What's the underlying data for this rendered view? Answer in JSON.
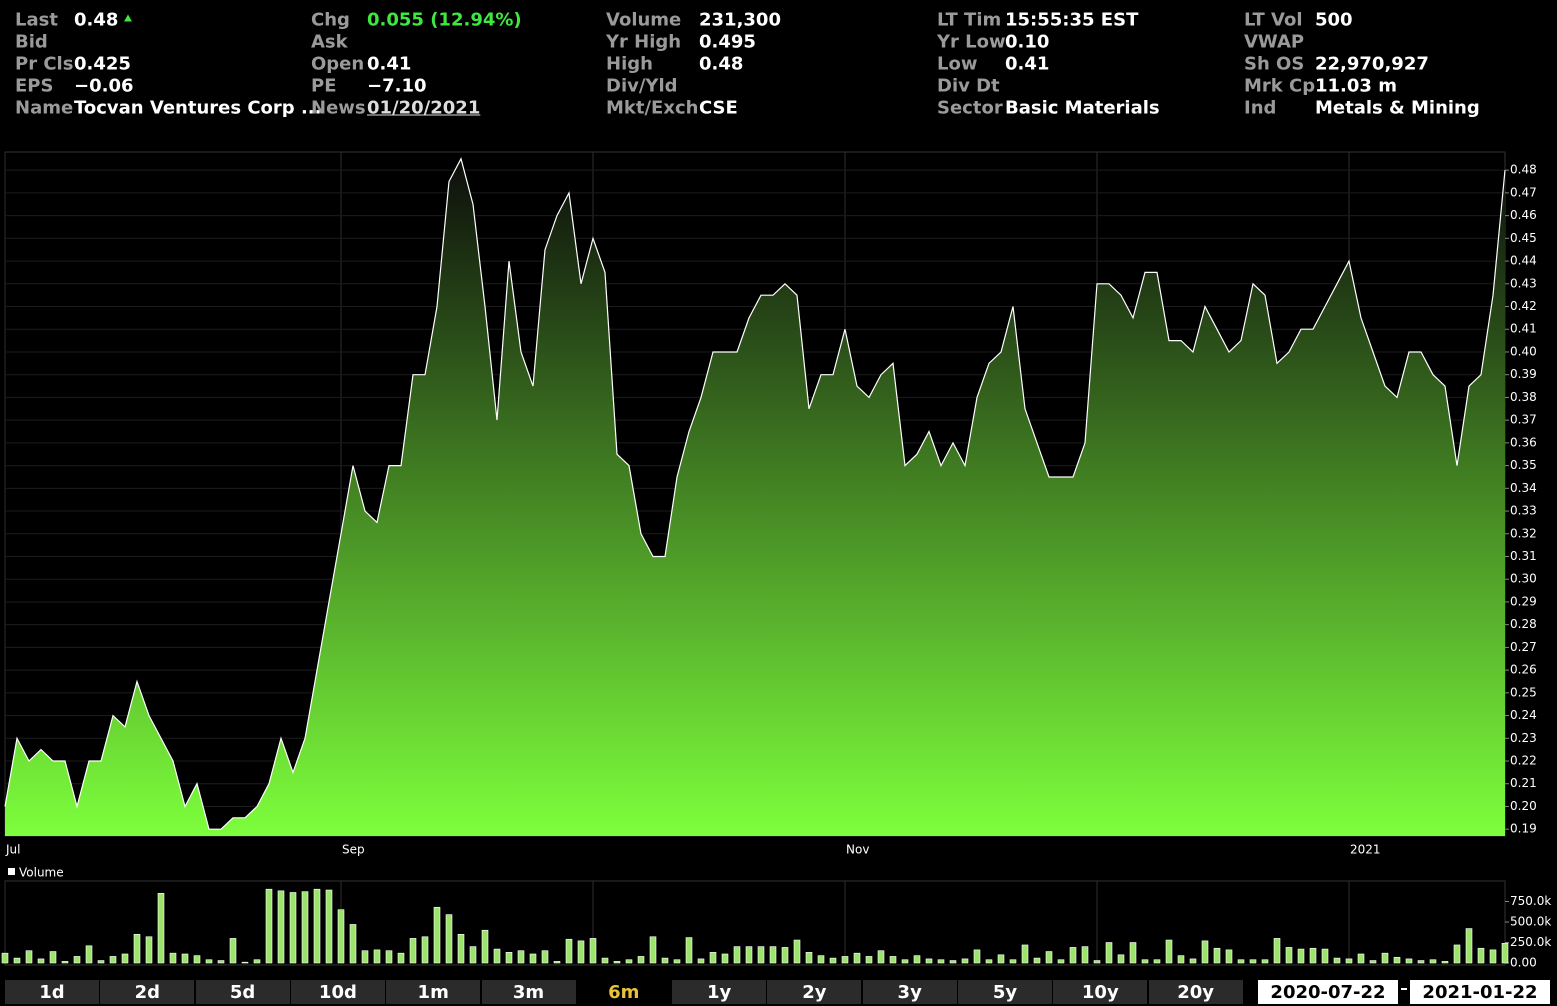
{
  "quote": {
    "columns": [
      [
        {
          "label": "Last",
          "value": "0.48"
        },
        {
          "label": "Bid"
        },
        {
          "label": "Pr Cls",
          "value": "0.425"
        },
        {
          "label": "EPS",
          "value": "−0.06"
        },
        {
          "label": "Name",
          "value": "Tocvan Ventures Corp ..."
        }
      ],
      [
        {
          "label": "Chg",
          "value": "0.055 (12.94%)"
        },
        {
          "label": "Ask"
        },
        {
          "label": "Open",
          "value": "0.41"
        },
        {
          "label": "PE",
          "value": "−7.10"
        },
        {
          "label": "News",
          "value": "01/20/2021"
        }
      ],
      [
        {
          "label": "Volume",
          "value": "231,300"
        },
        {
          "label": "Yr High",
          "value": "0.495"
        },
        {
          "label": "High",
          "value": "0.48"
        },
        {
          "label": "Div/Yld"
        },
        {
          "label": "Mkt/Exch",
          "value": "CSE"
        }
      ],
      [
        {
          "label": "LT Tim",
          "value": "15:55:35 EST"
        },
        {
          "label": "Yr Low",
          "value": "0.10"
        },
        {
          "label": "Low",
          "value": "0.41"
        },
        {
          "label": "Div Dt"
        },
        {
          "label": "Sector",
          "value": "Basic Materials"
        }
      ],
      [
        {
          "label": "LT Vol",
          "value": "500"
        },
        {
          "label": "VWAP"
        },
        {
          "label": "Sh OS",
          "value": "22,970,927"
        },
        {
          "label": "Mrk Cp",
          "value": "11.03 m"
        },
        {
          "label": "Ind",
          "value": "Metals & Mining"
        }
      ]
    ]
  },
  "chart_data": [
    {
      "type": "area",
      "color": "#ffffff",
      "fill_bottom": "#7dff3c",
      "fill_top": "#0b0b0b",
      "values": [
        0.2,
        0.23,
        0.22,
        0.225,
        0.22,
        0.22,
        0.2,
        0.22,
        0.22,
        0.24,
        0.235,
        0.255,
        0.24,
        0.23,
        0.22,
        0.2,
        0.21,
        0.19,
        0.19,
        0.195,
        0.195,
        0.2,
        0.21,
        0.23,
        0.215,
        0.23,
        0.26,
        0.29,
        0.32,
        0.35,
        0.33,
        0.325,
        0.35,
        0.35,
        0.39,
        0.39,
        0.42,
        0.475,
        0.485,
        0.465,
        0.42,
        0.37,
        0.44,
        0.4,
        0.385,
        0.445,
        0.46,
        0.47,
        0.43,
        0.45,
        0.435,
        0.355,
        0.35,
        0.32,
        0.31,
        0.31,
        0.345,
        0.365,
        0.38,
        0.4,
        0.4,
        0.4,
        0.415,
        0.425,
        0.425,
        0.43,
        0.425,
        0.375,
        0.39,
        0.39,
        0.41,
        0.385,
        0.38,
        0.39,
        0.395,
        0.35,
        0.355,
        0.365,
        0.35,
        0.36,
        0.35,
        0.38,
        0.395,
        0.4,
        0.42,
        0.375,
        0.36,
        0.345,
        0.345,
        0.345,
        0.36,
        0.43,
        0.43,
        0.425,
        0.415,
        0.435,
        0.435,
        0.405,
        0.405,
        0.4,
        0.42,
        0.41,
        0.4,
        0.405,
        0.43,
        0.425,
        0.395,
        0.4,
        0.41,
        0.41,
        0.42,
        0.43,
        0.44,
        0.415,
        0.4,
        0.385,
        0.38,
        0.4,
        0.4,
        0.39,
        0.385,
        0.35,
        0.385,
        0.39,
        0.425,
        0.48
      ],
      "xlim": [
        0,
        125
      ],
      "xticks": [
        {
          "value": 0,
          "label": "Jul"
        },
        {
          "value": 28,
          "label": "Sep"
        },
        {
          "value": 49,
          "label": null
        },
        {
          "value": 70,
          "label": "Nov"
        },
        {
          "value": 91,
          "label": null
        },
        {
          "value": 112,
          "label": "2021"
        }
      ],
      "ylim": [
        0.187,
        0.488
      ],
      "yticks": [
        0.19,
        {
          "value": 0.2,
          "label": "0.20"
        },
        0.21,
        0.22,
        0.23,
        0.24,
        0.25,
        0.26,
        0.27,
        0.28,
        0.29,
        {
          "value": 0.3,
          "label": "0.30"
        },
        0.31,
        0.32,
        0.33,
        0.34,
        0.35,
        0.36,
        0.37,
        0.38,
        0.39,
        {
          "value": 0.4,
          "label": "0.40"
        },
        0.41,
        0.42,
        0.43,
        0.44,
        0.45,
        0.46,
        0.47,
        0.48
      ],
      "grid": true
    },
    {
      "type": "bar",
      "series": [
        {
          "name": "Volume",
          "color": "#9be36b",
          "values": [
            120000,
            60000,
            150000,
            50000,
            140000,
            20000,
            80000,
            210000,
            30000,
            80000,
            110000,
            350000,
            320000,
            850000,
            120000,
            110000,
            90000,
            40000,
            30000,
            300000,
            10000,
            40000,
            900000,
            880000,
            860000,
            870000,
            900000,
            890000,
            650000,
            470000,
            150000,
            160000,
            150000,
            120000,
            300000,
            320000,
            680000,
            590000,
            350000,
            200000,
            400000,
            170000,
            130000,
            150000,
            110000,
            150000,
            20000,
            290000,
            270000,
            300000,
            60000,
            20000,
            40000,
            80000,
            320000,
            60000,
            40000,
            310000,
            50000,
            130000,
            110000,
            200000,
            200000,
            200000,
            200000,
            190000,
            280000,
            130000,
            90000,
            60000,
            80000,
            120000,
            80000,
            150000,
            80000,
            40000,
            90000,
            50000,
            40000,
            30000,
            50000,
            160000,
            40000,
            100000,
            40000,
            220000,
            60000,
            140000,
            40000,
            190000,
            200000,
            30000,
            250000,
            100000,
            250000,
            40000,
            40000,
            280000,
            90000,
            50000,
            270000,
            180000,
            160000,
            40000,
            40000,
            40000,
            300000,
            190000,
            170000,
            180000,
            170000,
            60000,
            50000,
            110000,
            30000,
            120000,
            70000,
            50000,
            30000,
            40000,
            20000,
            220000,
            420000,
            180000,
            160000,
            240000
          ]
        }
      ],
      "xlim": [
        0,
        125
      ],
      "ylim": [
        0,
        1000000
      ],
      "yticks": [
        {
          "value": 0,
          "label": "0.00"
        },
        {
          "value": 250000,
          "label": "250.0k"
        },
        {
          "value": 500000,
          "label": "500.0k"
        },
        {
          "value": 750000,
          "label": "750.0k"
        }
      ]
    }
  ],
  "controls": {
    "ranges": [
      "1d",
      "2d",
      "5d",
      "10d",
      "1m",
      "3m",
      "6m",
      "1y",
      "2y",
      "3y",
      "5y",
      "10y",
      "20y"
    ],
    "active_index": 6,
    "start_date": "2020-07-22",
    "end_date": "2021-01-22"
  }
}
